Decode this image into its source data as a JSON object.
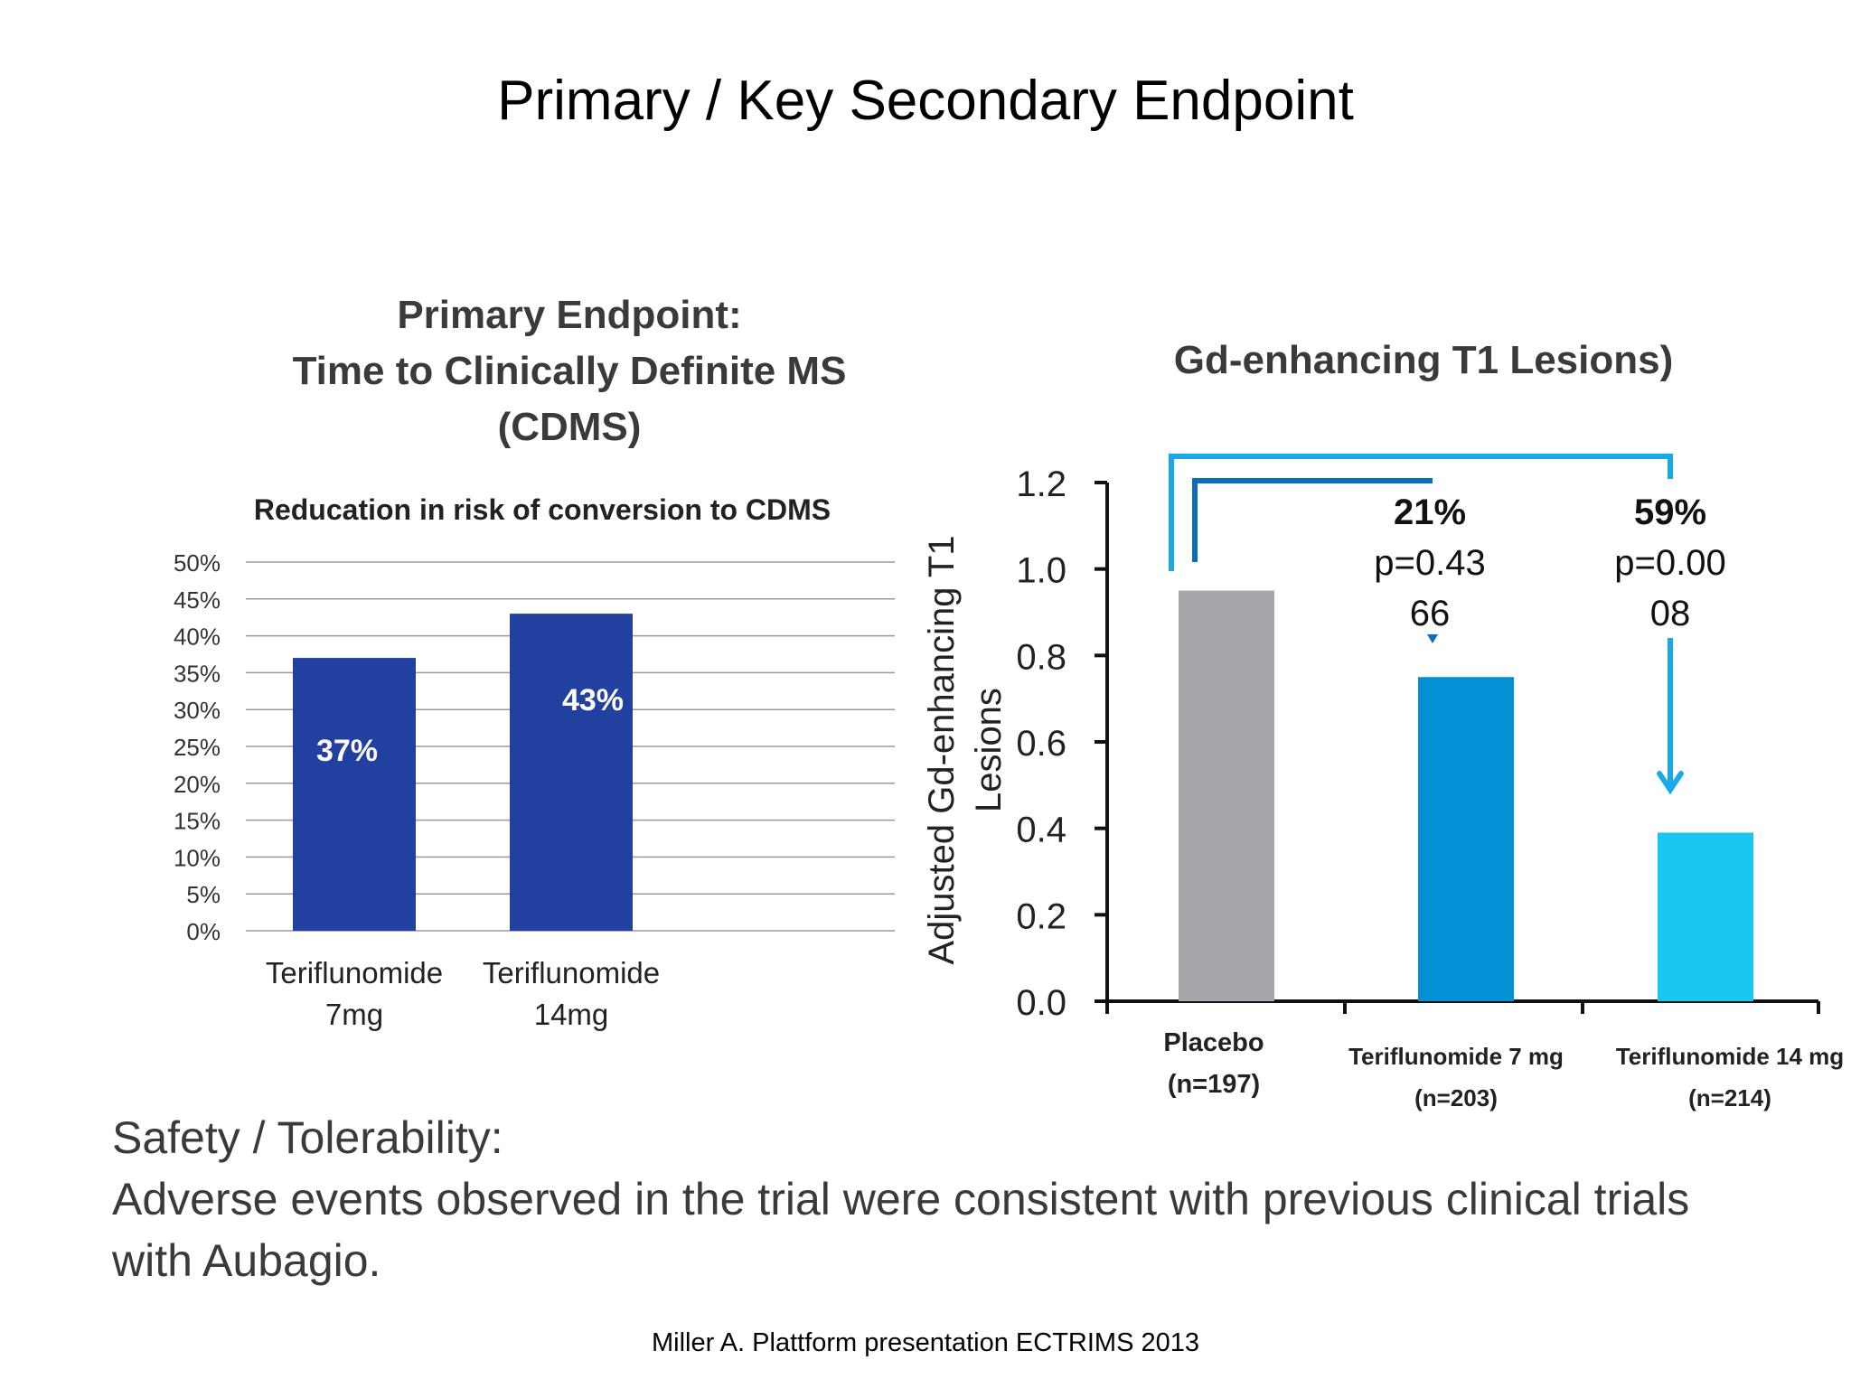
{
  "slide": {
    "title": "Primary / Key Secondary Endpoint",
    "left_heading": [
      "Primary Endpoint:",
      "Time to Clinically Definite MS",
      "(CDMS)"
    ],
    "right_heading": "Gd-enhancing T1 Lesions)",
    "safety": [
      "Safety / Tolerability:",
      "Adverse events observed in the trial were consistent with previous clinical trials",
      "with Aubagio."
    ],
    "citation": "Miller A. Plattform presentation  ECTRIMS 2013"
  },
  "colors": {
    "left_bar": "#2240a0",
    "placebo": "#a7a7ab",
    "teri7": "#0390d4",
    "teri14": "#1ac6f0",
    "bracket_outer": "#1aa9e8",
    "bracket_inner": "#0a6fb8"
  },
  "chart_data": [
    {
      "type": "bar",
      "title": "Reducation in risk of conversion to CDMS",
      "categories": [
        [
          "Teriflunomide",
          "7mg"
        ],
        [
          "Teriflunomide",
          "14mg"
        ]
      ],
      "values": [
        37,
        43
      ],
      "data_labels": [
        "37%",
        "43%"
      ],
      "ylim": [
        0,
        50
      ],
      "yticks": [
        "0%",
        "5%",
        "10%",
        "15%",
        "20%",
        "25%",
        "30%",
        "35%",
        "40%",
        "45%",
        "50%"
      ],
      "grid": true,
      "legend": "none"
    },
    {
      "type": "bar",
      "title": "",
      "ylabel": [
        "Adjusted Gd-enhancing T1",
        "Lesions"
      ],
      "categories": [
        [
          "Placebo",
          "(n=197)"
        ],
        [
          "Teriflunomide 7 mg",
          "(n=203)"
        ],
        [
          "Teriflunomide 14 mg",
          "(n=214)"
        ]
      ],
      "values": [
        0.95,
        0.75,
        0.39
      ],
      "ylim": [
        0,
        1.2
      ],
      "yticks": [
        "0.0",
        "0.2",
        "0.4",
        "0.6",
        "0.8",
        "1.0",
        "1.2"
      ],
      "grid": false,
      "annotations": [
        {
          "percent": "21%",
          "p_lines": [
            "p=0.43",
            "66"
          ]
        },
        {
          "percent": "59%",
          "p_lines": [
            "p=0.00",
            "08"
          ]
        }
      ]
    }
  ]
}
